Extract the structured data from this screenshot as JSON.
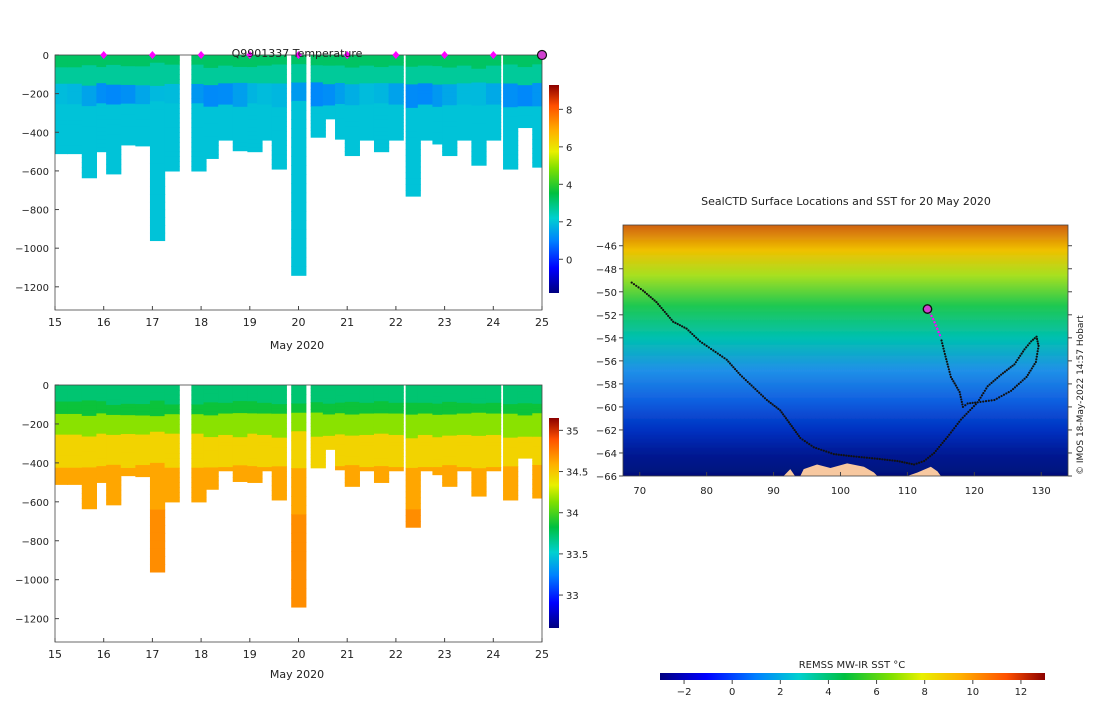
{
  "chart_data": [
    {
      "type": "heatmap",
      "title": "Q9901337  Temperature",
      "xlabel": "May 2020",
      "ylabel": "",
      "xlim": [
        15,
        25
      ],
      "ylim": [
        -1320,
        0
      ],
      "x_ticks": [
        15,
        16,
        17,
        18,
        19,
        20,
        21,
        22,
        23,
        24,
        25
      ],
      "y_ticks": [
        0,
        -200,
        -400,
        -600,
        -800,
        -1000,
        -1200
      ],
      "colorbar": {
        "min": -1.8,
        "max": 9.3,
        "ticks": [
          0,
          2,
          4,
          6,
          8
        ]
      },
      "surface_markers": [
        16,
        17,
        18,
        19,
        20,
        21,
        22,
        23,
        24
      ],
      "last_marker": 25,
      "profiles": [
        {
          "t": 15.1,
          "d": 510
        },
        {
          "t": 15.4,
          "d": 510
        },
        {
          "t": 15.7,
          "d": 635
        },
        {
          "t": 16.0,
          "d": 500
        },
        {
          "t": 16.2,
          "d": 615
        },
        {
          "t": 16.5,
          "d": 465
        },
        {
          "t": 16.8,
          "d": 470
        },
        {
          "t": 17.1,
          "d": 960
        },
        {
          "t": 17.4,
          "d": 600
        },
        {
          "t": 17.7,
          "d": null
        },
        {
          "t": 17.95,
          "d": 600
        },
        {
          "t": 18.2,
          "d": 535
        },
        {
          "t": 18.5,
          "d": 440
        },
        {
          "t": 18.8,
          "d": 495
        },
        {
          "t": 19.1,
          "d": 500
        },
        {
          "t": 19.3,
          "d": 440
        },
        {
          "t": 19.6,
          "d": 590
        },
        {
          "t": 20.0,
          "d": 1140
        },
        {
          "t": 20.4,
          "d": 425
        },
        {
          "t": 20.65,
          "d": 330
        },
        {
          "t": 20.9,
          "d": 435
        },
        {
          "t": 21.1,
          "d": 520
        },
        {
          "t": 21.4,
          "d": 440
        },
        {
          "t": 21.7,
          "d": 500
        },
        {
          "t": 22.0,
          "d": 440
        },
        {
          "t": 22.35,
          "d": 730
        },
        {
          "t": 22.6,
          "d": 440
        },
        {
          "t": 22.9,
          "d": 460
        },
        {
          "t": 23.1,
          "d": 520
        },
        {
          "t": 23.4,
          "d": 440
        },
        {
          "t": 23.7,
          "d": 570
        },
        {
          "t": 24.0,
          "d": 440
        },
        {
          "t": 24.35,
          "d": 590
        },
        {
          "t": 24.65,
          "d": 375
        },
        {
          "t": 24.95,
          "d": 580
        }
      ],
      "column_width_days": 0.3
    },
    {
      "type": "heatmap",
      "title": "",
      "xlabel": "May 2020",
      "ylabel": "",
      "xlim": [
        15,
        25
      ],
      "ylim": [
        -1320,
        0
      ],
      "x_ticks": [
        15,
        16,
        17,
        18,
        19,
        20,
        21,
        22,
        23,
        24,
        25
      ],
      "y_ticks": [
        0,
        -200,
        -400,
        -600,
        -800,
        -1000,
        -1200
      ],
      "colorbar": {
        "min": 32.6,
        "max": 35.15,
        "ticks": [
          33,
          33.5,
          34,
          34.5,
          35
        ]
      },
      "uses_profiles_of_chart": 0
    },
    {
      "type": "heatmap",
      "title": "SealCTD Surface Locations and SST for 20 May 2020",
      "xlabel": "",
      "ylabel": "",
      "xlim": [
        67.5,
        134
      ],
      "ylim": [
        -66,
        -44.2
      ],
      "x_ticks": [
        70,
        80,
        90,
        100,
        110,
        120,
        130
      ],
      "y_ticks": [
        -46,
        -48,
        -50,
        -52,
        -54,
        -56,
        -58,
        -60,
        -62,
        -64,
        -66
      ],
      "colorbar": {
        "label": "REMSS MW-IR SST °C",
        "min": -3,
        "max": 13,
        "ticks": [
          -2,
          0,
          2,
          4,
          6,
          8,
          10,
          12
        ]
      },
      "credit": "© IMOS 18-May-2022 14:57 Hobart",
      "current_position": [
        113,
        -51.5
      ],
      "recent_track": [
        [
          113,
          -51.5
        ],
        [
          113.8,
          -52.3
        ],
        [
          114.6,
          -53.4
        ],
        [
          115.0,
          -54.0
        ]
      ],
      "track": [
        [
          68.8,
          -49.2
        ],
        [
          70.5,
          -49.9
        ],
        [
          72.5,
          -50.9
        ],
        [
          75,
          -52.6
        ],
        [
          77,
          -53.2
        ],
        [
          79,
          -54.3
        ],
        [
          81,
          -55.1
        ],
        [
          83,
          -55.9
        ],
        [
          85,
          -57.2
        ],
        [
          87,
          -58.3
        ],
        [
          89,
          -59.4
        ],
        [
          91,
          -60.3
        ],
        [
          92.5,
          -61.5
        ],
        [
          94,
          -62.7
        ],
        [
          96,
          -63.5
        ],
        [
          99,
          -64.1
        ],
        [
          102,
          -64.3
        ],
        [
          105.5,
          -64.5
        ],
        [
          108.5,
          -64.7
        ],
        [
          111,
          -65.0
        ],
        [
          112.5,
          -64.7
        ],
        [
          114,
          -64.0
        ],
        [
          116,
          -62.6
        ],
        [
          118,
          -61.1
        ],
        [
          120.5,
          -59.6
        ],
        [
          122,
          -58.2
        ],
        [
          124,
          -57.2
        ],
        [
          126,
          -56.3
        ],
        [
          127.5,
          -55.0
        ],
        [
          128.5,
          -54.3
        ],
        [
          129.3,
          -53.9
        ],
        [
          129.6,
          -54.7
        ],
        [
          129.2,
          -56.1
        ],
        [
          127.8,
          -57.4
        ],
        [
          125.5,
          -58.6
        ],
        [
          123,
          -59.4
        ],
        [
          120.5,
          -59.6
        ],
        [
          119,
          -59.7
        ],
        [
          118.3,
          -60.0
        ],
        [
          117.8,
          -58.7
        ],
        [
          116.5,
          -57.4
        ],
        [
          115.6,
          -55.4
        ],
        [
          115.0,
          -54.0
        ]
      ],
      "land": [
        [
          [
            94,
            -66
          ],
          [
            94.5,
            -65.4
          ],
          [
            96.5,
            -65.0
          ],
          [
            98.5,
            -65.3
          ],
          [
            101,
            -64.9
          ],
          [
            103.5,
            -65.2
          ],
          [
            105,
            -65.7
          ],
          [
            105.5,
            -66
          ]
        ],
        [
          [
            110,
            -66
          ],
          [
            111.5,
            -65.7
          ],
          [
            113.5,
            -65.2
          ],
          [
            114.5,
            -65.6
          ],
          [
            115,
            -66
          ]
        ],
        [
          [
            91.5,
            -66
          ],
          [
            92.5,
            -65.4
          ],
          [
            93.2,
            -66
          ]
        ]
      ]
    }
  ]
}
